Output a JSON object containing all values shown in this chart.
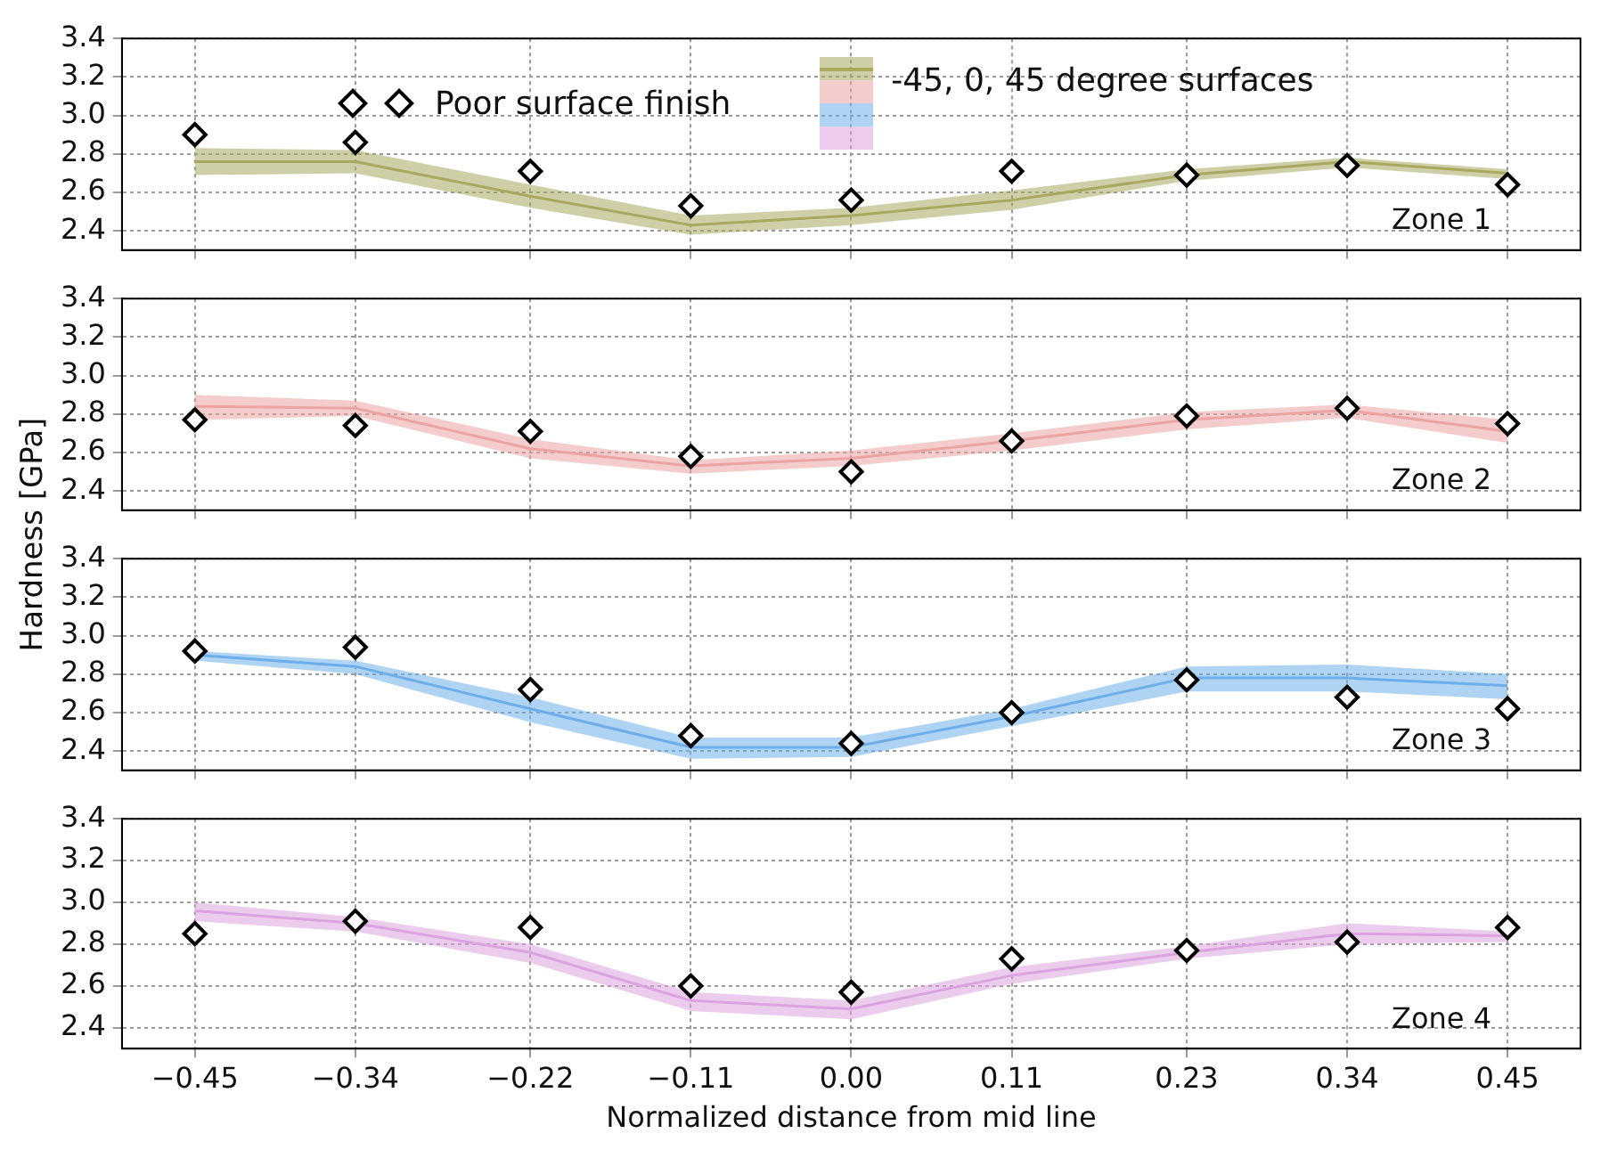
{
  "chart_data": [
    {
      "type": "line",
      "x": [
        -0.45,
        -0.34,
        -0.22,
        -0.11,
        0,
        0.11,
        0.23,
        0.34,
        0.45
      ],
      "xlim": [
        -0.5,
        0.5
      ],
      "xticks": [
        -0.45,
        -0.34,
        -0.22,
        -0.11,
        0,
        0.11,
        0.23,
        0.34,
        0.45
      ],
      "ylim": [
        2.3,
        3.4
      ],
      "yticks": [
        {
          "value": 2.4,
          "label": "2.4"
        },
        {
          "value": 2.6,
          "label": "2.6"
        },
        {
          "value": 2.8,
          "label": "2.8"
        },
        {
          "value": 3.0,
          "label": "3.0"
        },
        {
          "value": 3.2,
          "label": "3.2"
        },
        {
          "value": 3.4,
          "label": "3.4"
        }
      ],
      "grid": true,
      "tick_labels": "y",
      "legend": "top",
      "annotations": [
        "Zone 1"
      ],
      "series": [
        {
          "name": "Poor surface finish",
          "type": "scatter",
          "marker": "diamond",
          "color": "#000000",
          "values": [
            2.9,
            2.86,
            2.71,
            2.53,
            2.56,
            2.71,
            2.69,
            2.74,
            2.64
          ]
        },
        {
          "name": "-45, 0, 45 degree surfaces",
          "type": "line",
          "color": "#a8a85e",
          "values": [
            2.76,
            2.76,
            2.58,
            2.43,
            2.48,
            2.56,
            2.69,
            2.76,
            2.7
          ],
          "lower": [
            2.69,
            2.7,
            2.52,
            2.38,
            2.43,
            2.51,
            2.66,
            2.73,
            2.67
          ],
          "upper": [
            2.83,
            2.82,
            2.64,
            2.48,
            2.52,
            2.61,
            2.72,
            2.78,
            2.72
          ]
        }
      ]
    },
    {
      "type": "line",
      "x": [
        -0.45,
        -0.34,
        -0.22,
        -0.11,
        0,
        0.11,
        0.23,
        0.34,
        0.45
      ],
      "xlim": [
        -0.5,
        0.5
      ],
      "xticks": [
        -0.45,
        -0.34,
        -0.22,
        -0.11,
        0,
        0.11,
        0.23,
        0.34,
        0.45
      ],
      "ylim": [
        2.3,
        3.4
      ],
      "yticks": [
        {
          "value": 2.4,
          "label": "2.4"
        },
        {
          "value": 2.6,
          "label": "2.6"
        },
        {
          "value": 2.8,
          "label": "2.8"
        },
        {
          "value": 3.0,
          "label": "3.0"
        },
        {
          "value": 3.2,
          "label": "3.2"
        },
        {
          "value": 3.4,
          "label": "3.4"
        }
      ],
      "grid": true,
      "tick_labels": "y",
      "annotations": [
        "Zone 2"
      ],
      "series": [
        {
          "type": "scatter",
          "marker": "diamond",
          "color": "#000000",
          "values": [
            2.77,
            2.74,
            2.71,
            2.58,
            2.5,
            2.66,
            2.79,
            2.83,
            2.75
          ]
        },
        {
          "type": "line",
          "color": "#eba3a3",
          "values": [
            2.84,
            2.83,
            2.62,
            2.53,
            2.57,
            2.66,
            2.77,
            2.82,
            2.71
          ],
          "lower": [
            2.77,
            2.79,
            2.57,
            2.49,
            2.53,
            2.61,
            2.72,
            2.78,
            2.65
          ],
          "upper": [
            2.9,
            2.87,
            2.67,
            2.56,
            2.61,
            2.7,
            2.81,
            2.85,
            2.77
          ]
        }
      ]
    },
    {
      "type": "line",
      "x": [
        -0.45,
        -0.34,
        -0.22,
        -0.11,
        0,
        0.11,
        0.23,
        0.34,
        0.45
      ],
      "xlim": [
        -0.5,
        0.5
      ],
      "xticks": [
        -0.45,
        -0.34,
        -0.22,
        -0.11,
        0,
        0.11,
        0.23,
        0.34,
        0.45
      ],
      "ylim": [
        2.3,
        3.4
      ],
      "yticks": [
        {
          "value": 2.4,
          "label": "2.4"
        },
        {
          "value": 2.6,
          "label": "2.6"
        },
        {
          "value": 2.8,
          "label": "2.8"
        },
        {
          "value": 3.0,
          "label": "3.0"
        },
        {
          "value": 3.2,
          "label": "3.2"
        },
        {
          "value": 3.4,
          "label": "3.4"
        }
      ],
      "grid": true,
      "tick_labels": "y",
      "ylabel": "Hardness [GPa]",
      "annotations": [
        "Zone 3"
      ],
      "series": [
        {
          "type": "scatter",
          "marker": "diamond",
          "color": "#000000",
          "values": [
            2.92,
            2.94,
            2.72,
            2.48,
            2.44,
            2.6,
            2.77,
            2.68,
            2.62
          ]
        },
        {
          "type": "line",
          "color": "#6daeea",
          "values": [
            2.9,
            2.84,
            2.62,
            2.42,
            2.42,
            2.58,
            2.78,
            2.78,
            2.74
          ],
          "lower": [
            2.87,
            2.8,
            2.55,
            2.36,
            2.37,
            2.53,
            2.71,
            2.71,
            2.67
          ],
          "upper": [
            2.92,
            2.87,
            2.68,
            2.47,
            2.47,
            2.62,
            2.84,
            2.85,
            2.8
          ]
        }
      ]
    },
    {
      "type": "line",
      "x": [
        -0.45,
        -0.34,
        -0.22,
        -0.11,
        0,
        0.11,
        0.23,
        0.34,
        0.45
      ],
      "xlim": [
        -0.5,
        0.5
      ],
      "xticks": [
        {
          "value": -0.45,
          "label": "−0.45"
        },
        {
          "value": -0.34,
          "label": "−0.34"
        },
        {
          "value": -0.22,
          "label": "−0.22"
        },
        {
          "value": -0.11,
          "label": "−0.11"
        },
        {
          "value": 0,
          "label": "0.00"
        },
        {
          "value": 0.11,
          "label": "0.11"
        },
        {
          "value": 0.23,
          "label": "0.23"
        },
        {
          "value": 0.34,
          "label": "0.34"
        },
        {
          "value": 0.45,
          "label": "0.45"
        }
      ],
      "ylim": [
        2.3,
        3.4
      ],
      "yticks": [
        {
          "value": 2.4,
          "label": "2.4"
        },
        {
          "value": 2.6,
          "label": "2.6"
        },
        {
          "value": 2.8,
          "label": "2.8"
        },
        {
          "value": 3.0,
          "label": "3.0"
        },
        {
          "value": 3.2,
          "label": "3.2"
        },
        {
          "value": 3.4,
          "label": "3.4"
        }
      ],
      "grid": true,
      "xlabel": "Normalized distance from mid line",
      "annotations": [
        "Zone 4"
      ],
      "series": [
        {
          "type": "scatter",
          "marker": "diamond",
          "color": "#000000",
          "values": [
            2.85,
            2.91,
            2.88,
            2.6,
            2.57,
            2.73,
            2.77,
            2.81,
            2.88
          ]
        },
        {
          "type": "line",
          "color": "#dba3df",
          "values": [
            2.96,
            2.9,
            2.76,
            2.53,
            2.49,
            2.65,
            2.76,
            2.85,
            2.84
          ],
          "lower": [
            2.91,
            2.86,
            2.71,
            2.48,
            2.44,
            2.61,
            2.73,
            2.8,
            2.81
          ],
          "upper": [
            3.0,
            2.93,
            2.8,
            2.57,
            2.53,
            2.69,
            2.79,
            2.9,
            2.86
          ]
        }
      ]
    }
  ]
}
